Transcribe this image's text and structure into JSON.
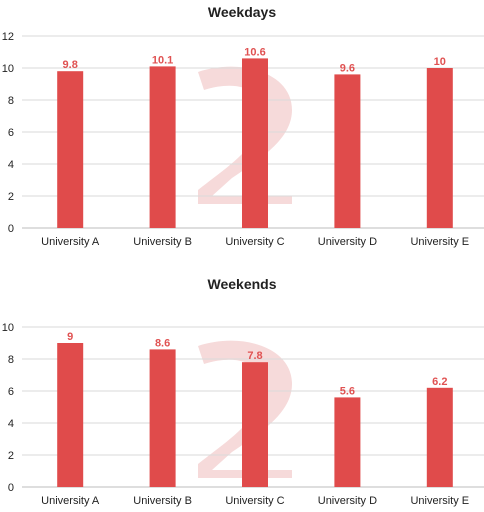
{
  "colors": {
    "bar": "#e04b4b",
    "label": "#e05252",
    "watermark": "#f6dada"
  },
  "watermark_icon": "stylized-2-logo-watermark",
  "chart_data": [
    {
      "type": "bar",
      "title": "Weekdays",
      "categories": [
        "University A",
        "University B",
        "University C",
        "University D",
        "University E"
      ],
      "values": [
        9.8,
        10.1,
        10.6,
        9.6,
        10
      ],
      "value_labels": [
        "9.8",
        "10.1",
        "10.6",
        "9.6",
        "10"
      ],
      "ylim": [
        0,
        12
      ],
      "yticks": [
        0,
        2,
        4,
        6,
        8,
        10,
        12
      ],
      "grid": true,
      "legend": "none"
    },
    {
      "type": "bar",
      "title": "Weekends",
      "categories": [
        "University A",
        "University B",
        "University C",
        "University D",
        "University E"
      ],
      "values": [
        9,
        8.6,
        7.8,
        5.6,
        6.2
      ],
      "value_labels": [
        "9",
        "8.6",
        "7.8",
        "5.6",
        "6.2"
      ],
      "ylim": [
        0,
        10
      ],
      "yticks": [
        0,
        2,
        4,
        6,
        8,
        10
      ],
      "grid": true,
      "legend": "none"
    }
  ]
}
